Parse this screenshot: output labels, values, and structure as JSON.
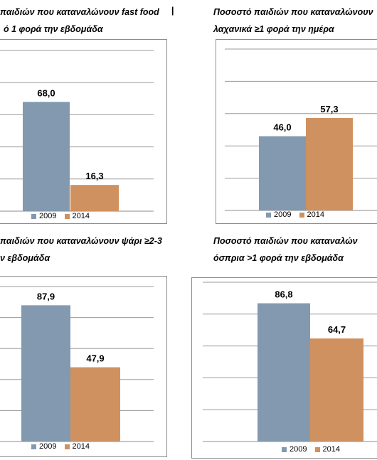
{
  "colors": {
    "series2009": "#8399b0",
    "series2014": "#cf915f",
    "grid": "#9a9a9a"
  },
  "captions": {
    "c1_line1": "παιδιών που καταναλώνουν  fast food",
    "c1_line2": "ό 1 φορά την εβδομάδα",
    "c2_line1": "Ποσοστό παιδιών που καταναλώνουν",
    "c2_line2": "λαχανικά ≥1 φορά την ημέρα",
    "c3_line1": "παιδιών που καταναλώνουν  ψάρι ≥2-3",
    "c3_line2": "ν εβδομάδα",
    "c4_line1": "Ποσοστό παιδιών που καταναλών",
    "c4_line2": "όσπρια >1 φορά την εβδομάδα"
  },
  "chart_data": [
    {
      "type": "bar",
      "title": "",
      "categories": [
        ""
      ],
      "ylim": [
        0,
        100
      ],
      "grid": true,
      "legend_position": "bottom",
      "series": [
        {
          "name": "2009",
          "values": [
            68.0
          ]
        },
        {
          "name": "2014",
          "values": [
            16.3
          ]
        }
      ],
      "data_labels": [
        "68,0",
        "16,3"
      ]
    },
    {
      "type": "bar",
      "title": "",
      "categories": [
        ""
      ],
      "ylim": [
        0,
        100
      ],
      "grid": true,
      "legend_position": "bottom",
      "series": [
        {
          "name": "2009",
          "values": [
            46.0
          ]
        },
        {
          "name": "2014",
          "values": [
            57.3
          ]
        }
      ],
      "data_labels": [
        "46,0",
        "57,3"
      ]
    },
    {
      "type": "bar",
      "title": "",
      "categories": [
        ""
      ],
      "ylim": [
        0,
        100
      ],
      "grid": true,
      "legend_position": "bottom",
      "series": [
        {
          "name": "2009",
          "values": [
            87.9
          ]
        },
        {
          "name": "2014",
          "values": [
            47.9
          ]
        }
      ],
      "data_labels": [
        "87,9",
        "47,9"
      ]
    },
    {
      "type": "bar",
      "title": "",
      "categories": [
        ""
      ],
      "ylim": [
        0,
        100
      ],
      "grid": true,
      "legend_position": "bottom",
      "series": [
        {
          "name": "2009",
          "values": [
            86.8
          ]
        },
        {
          "name": "2014",
          "values": [
            64.7
          ]
        }
      ],
      "data_labels": [
        "86,8",
        "64,7"
      ]
    }
  ]
}
